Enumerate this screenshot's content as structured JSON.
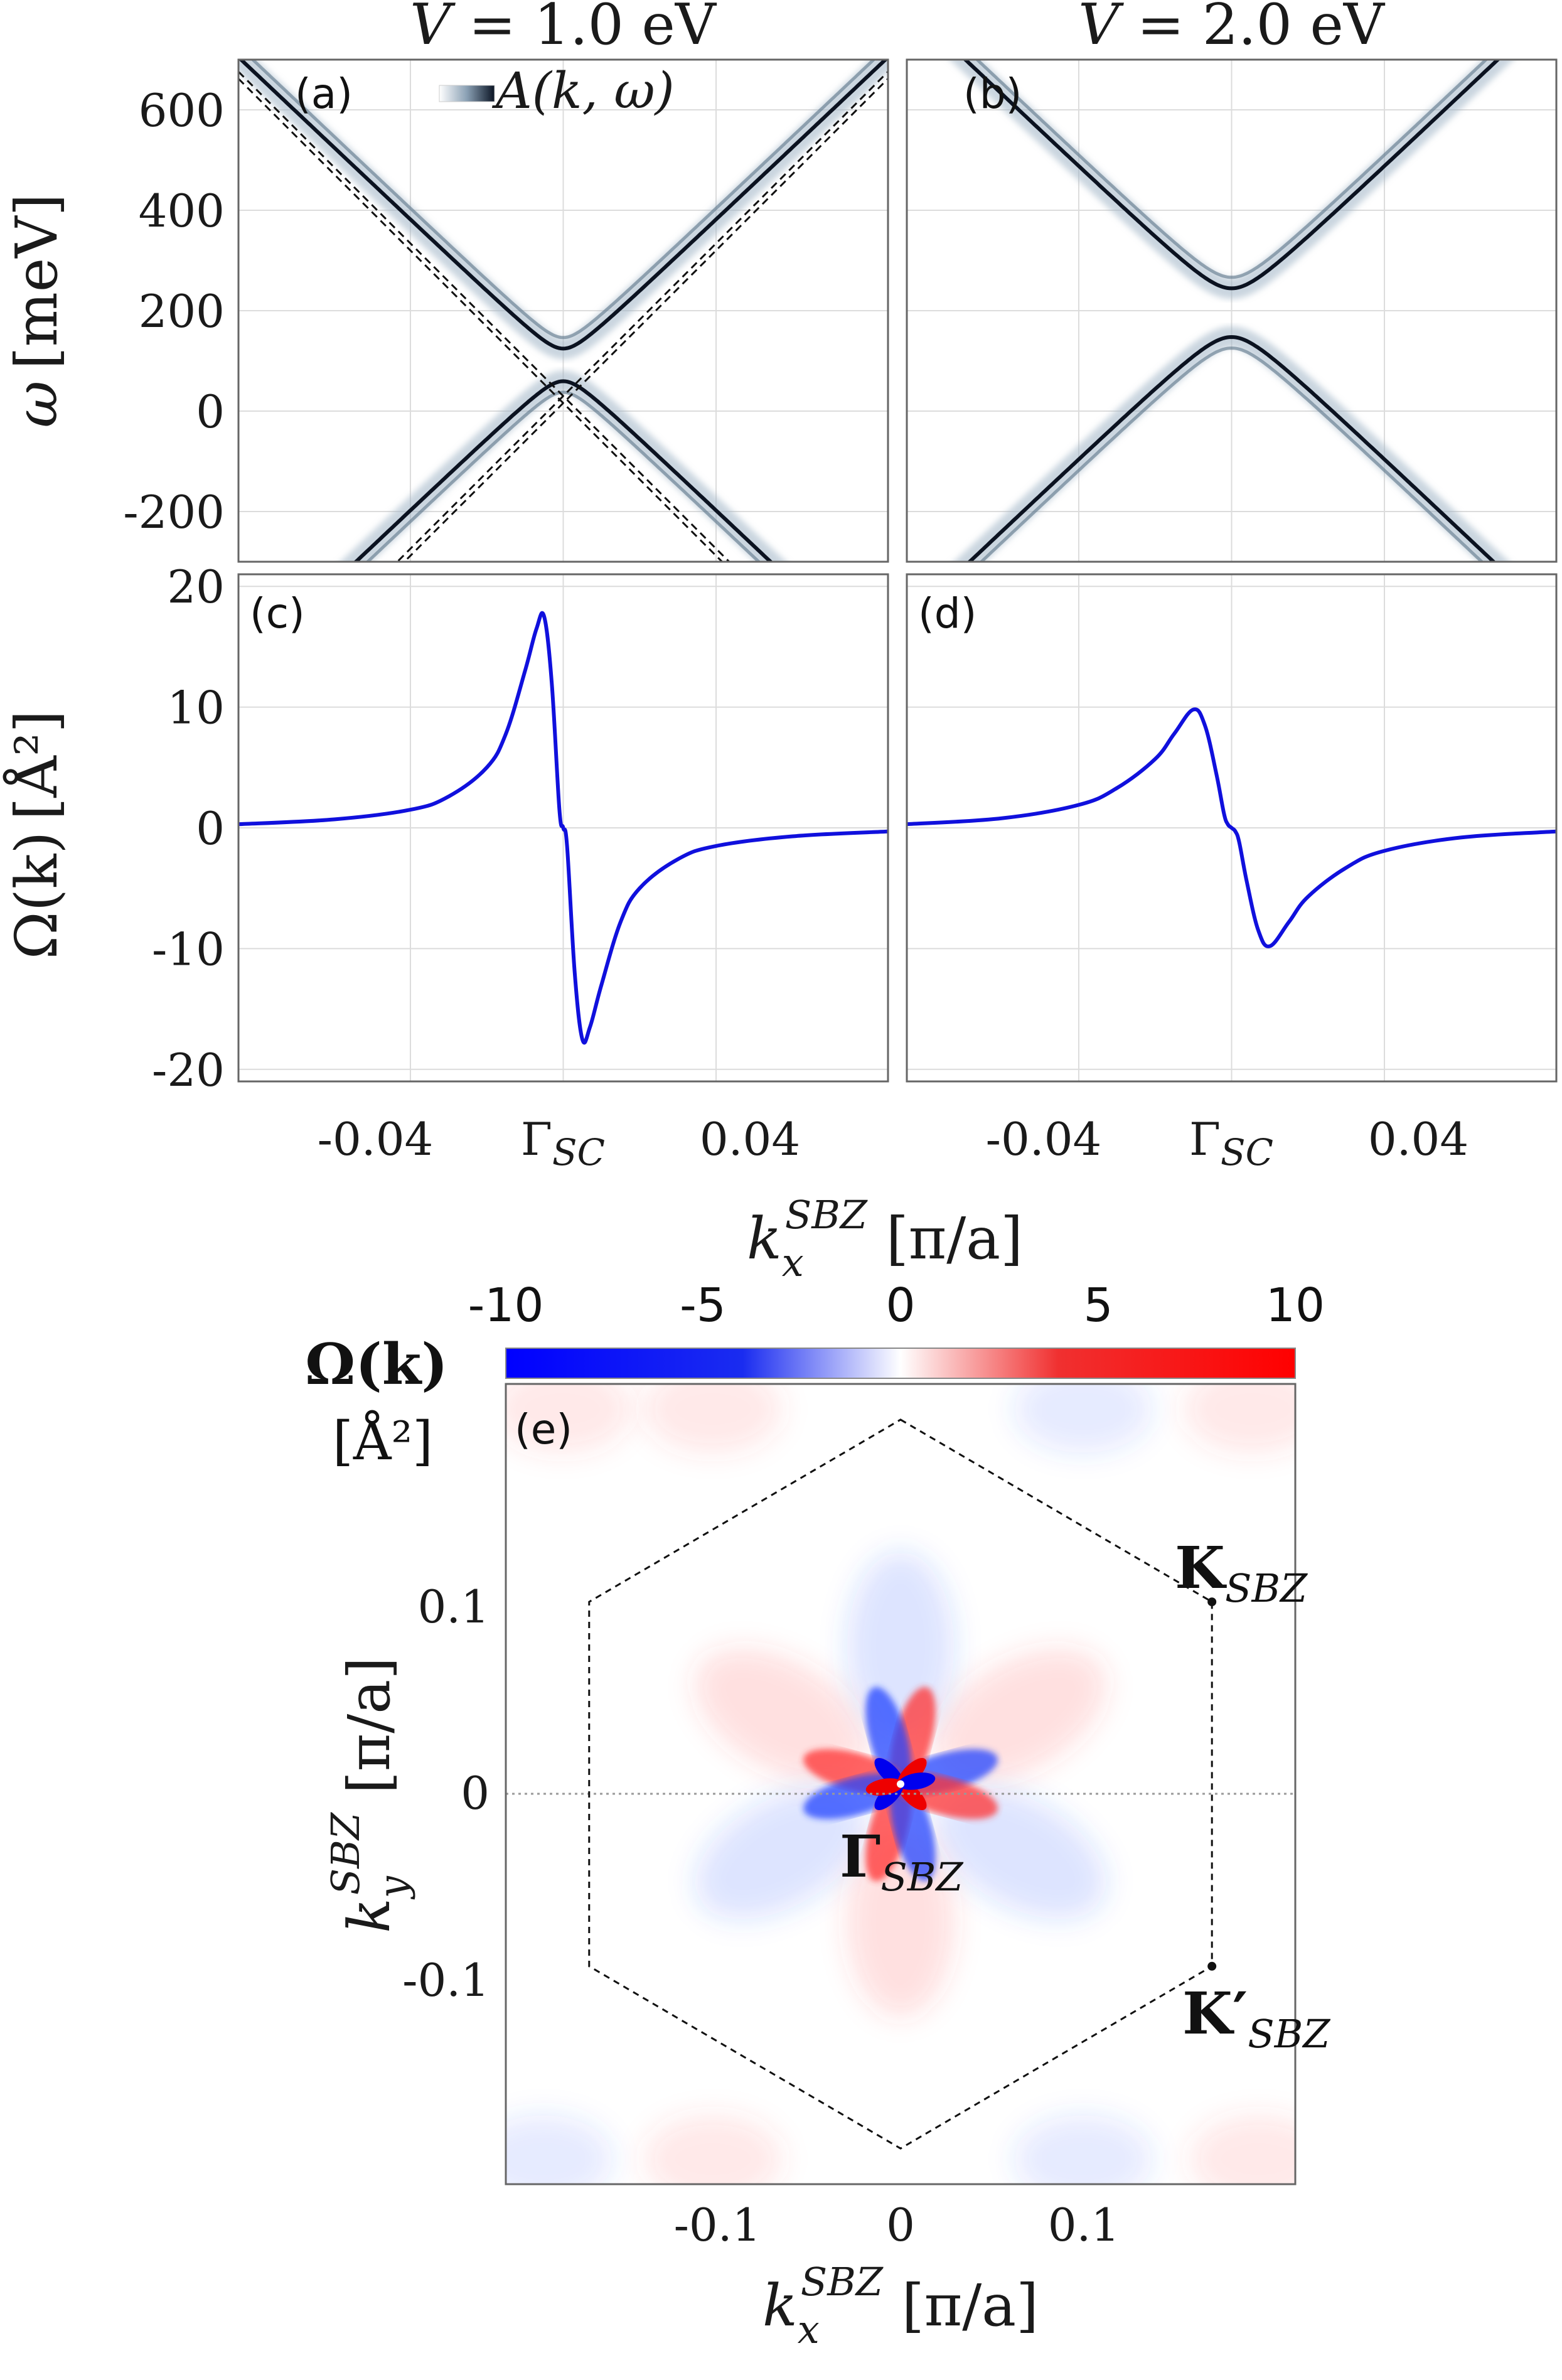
{
  "chart_data": [
    {
      "panel": "a",
      "type": "heatmap",
      "title": "V = 1.0 eV",
      "label": "(a)",
      "colorbar_label": "A(k, ω)",
      "ylabel": "ω [meV]",
      "xlim": [
        -0.085,
        0.085
      ],
      "ylim": [
        -300,
        700
      ],
      "yticks": [
        -200,
        0,
        200,
        400,
        600
      ],
      "ytick_labels": [
        "-200",
        "0",
        "200",
        "400",
        "600"
      ],
      "description_bands": {
        "upper_band_min_meV": 125,
        "lower_band_max_meV": 60,
        "gap_center_meV": 92,
        "velocity_meV_per_unit": 7200
      },
      "dashed_lines": "bare Dirac cones crossing near ω≈30 meV at Γ_SC"
    },
    {
      "panel": "b",
      "type": "heatmap",
      "title": "V = 2.0 eV",
      "label": "(b)",
      "xlim": [
        -0.085,
        0.085
      ],
      "ylim": [
        -300,
        700
      ],
      "description_bands": {
        "upper_band_min_meV": 245,
        "lower_band_max_meV": 148,
        "gap_center_meV": 196,
        "velocity_meV_per_unit": 7200
      }
    },
    {
      "panel": "c",
      "type": "line",
      "label": "(c)",
      "ylabel": "Ω(k) [Å²]",
      "xlim": [
        -0.085,
        0.085
      ],
      "ylim": [
        -21,
        21
      ],
      "yticks": [
        -20,
        -10,
        0,
        10,
        20
      ],
      "ytick_labels": [
        "-20",
        "-10",
        "0",
        "10",
        "20"
      ],
      "series": [
        {
          "name": "Ω(k)",
          "color": "#1010dd",
          "x": [
            -0.085,
            -0.06,
            -0.04,
            -0.03,
            -0.02,
            -0.015,
            -0.01,
            -0.007,
            -0.005,
            -0.003,
            -0.001,
            0.0,
            0.001,
            0.003,
            0.005,
            0.007,
            0.01,
            0.015,
            0.02,
            0.03,
            0.04,
            0.06,
            0.085
          ],
          "y": [
            0.3,
            0.7,
            1.5,
            2.6,
            5.0,
            7.8,
            13.0,
            16.5,
            17.5,
            12.0,
            1.5,
            0.0,
            -1.5,
            -12.0,
            -17.5,
            -16.5,
            -13.0,
            -7.8,
            -5.0,
            -2.6,
            -1.5,
            -0.7,
            -0.3
          ]
        }
      ]
    },
    {
      "panel": "d",
      "type": "line",
      "label": "(d)",
      "xlim": [
        -0.085,
        0.085
      ],
      "ylim": [
        -21,
        21
      ],
      "series": [
        {
          "name": "Ω(k)",
          "color": "#1010dd",
          "x": [
            -0.085,
            -0.06,
            -0.04,
            -0.03,
            -0.02,
            -0.015,
            -0.01,
            -0.007,
            -0.004,
            -0.002,
            -0.001,
            0.0,
            0.001,
            0.002,
            0.004,
            0.007,
            0.01,
            0.015,
            0.02,
            0.03,
            0.04,
            0.06,
            0.085
          ],
          "y": [
            0.3,
            0.8,
            1.9,
            3.3,
            5.7,
            7.8,
            9.8,
            8.5,
            4.5,
            1.2,
            0.3,
            0.0,
            -0.3,
            -1.2,
            -4.5,
            -8.5,
            -9.8,
            -7.8,
            -5.7,
            -3.3,
            -1.9,
            -0.8,
            -0.3
          ]
        }
      ]
    },
    {
      "panel": "e",
      "type": "heatmap",
      "label": "(e)",
      "colorbar_title": "Ω(k)",
      "colorbar_unit": "[Å²]",
      "colorbar_range": [
        -10,
        10
      ],
      "colorbar_ticks": [
        "-10",
        "-5",
        "0",
        "5",
        "10"
      ],
      "xlabel": "k_x^SBZ [π/a]",
      "ylabel": "k_y^SBZ [π/a]",
      "xlim": [
        -0.215,
        0.215
      ],
      "ylim": [
        -0.215,
        0.215
      ],
      "xticks": [
        -0.1,
        0,
        0.1
      ],
      "xtick_labels": [
        "-0.1",
        "0",
        "0.1"
      ],
      "yticks": [
        -0.1,
        0,
        0.1
      ],
      "ytick_labels": [
        "-0.1",
        "0",
        "0.1"
      ],
      "points": {
        "Gamma": {
          "label": "Γ",
          "sub": "SBZ",
          "x": 0.0,
          "y": 0.0
        },
        "K": {
          "label": "K",
          "sub": "SBZ",
          "x": 0.1696,
          "y": 0.0979
        },
        "Kprime": {
          "label": "K′",
          "sub": "SBZ",
          "x": 0.1696,
          "y": -0.0979
        }
      },
      "hexagon_vertices": [
        [
          0.0,
          0.1958
        ],
        [
          0.1696,
          0.0979
        ],
        [
          0.1696,
          -0.0979
        ],
        [
          0.0,
          -0.1958
        ],
        [
          -0.1696,
          -0.0979
        ],
        [
          -0.1696,
          0.0979
        ]
      ]
    }
  ],
  "shared": {
    "xtick_labels_ab_cd": [
      "-0.04",
      "Γ",
      "0.04"
    ],
    "xtick_values": [
      -0.04,
      0.0,
      0.04
    ],
    "gamma_sub": "SC",
    "xlabel_top": "k_x^SBZ [π/a]"
  },
  "text": {
    "title_a_V": "V",
    "title_a_rest": " = 1.0 eV",
    "title_b_V": "V",
    "title_b_rest": " = 2.0 eV",
    "label_a": "(a)",
    "label_b": "(b)",
    "label_c": "(c)",
    "label_d": "(d)",
    "label_e": "(e)",
    "spec_label": "A(k, ω)",
    "omega_label": "ω",
    "omega_unit": "[meV]",
    "berry_label": "Ω(k)",
    "berry_unit": "[Å²]",
    "kx": "k",
    "kx_sub": "x",
    "kx_sup": "SBZ",
    "ky_sub": "y",
    "pi_over_a": "[π/a]",
    "cb_title": "Ω(k)",
    "cb_unit": "[Å²]",
    "gamma": "Γ",
    "gamma_sub_sc": "SC",
    "gamma_sub_sbz": "SBZ",
    "K": "K",
    "Kp": "K′",
    "sbz": "SBZ",
    "tick_m004": "-0.04",
    "tick_p004": "0.04",
    "cb_m10": "-10",
    "cb_m5": "-5",
    "cb_0": "0",
    "cb_5": "5",
    "cb_10": "10",
    "e_xm": "-0.1",
    "e_x0": "0",
    "e_xp": "0.1",
    "e_yp": "0.1",
    "e_y0": "0",
    "e_ym": "-0.1",
    "ab_y600": "600",
    "ab_y400": "400",
    "ab_y200": "200",
    "ab_y0": "0",
    "ab_ym200": "-200",
    "cd_y20": "20",
    "cd_y10": "10",
    "cd_y0": "0",
    "cd_ym10": "-10",
    "cd_ym20": "-20"
  }
}
